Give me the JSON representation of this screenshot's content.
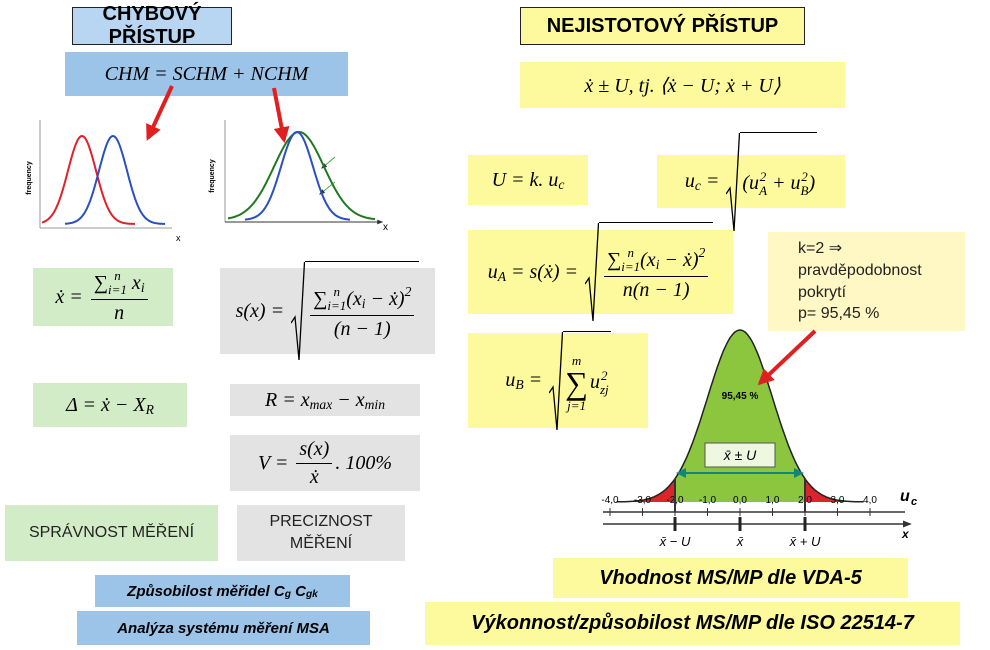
{
  "left": {
    "title": "CHYBOVÝ PŘÍSTUP",
    "equation": [
      "CHM = SCHM + NCHM"
    ],
    "graph1": {
      "y_label": "frequency",
      "x_label": "x"
    },
    "graph2": {
      "y_label": "frequency",
      "x_label": "x"
    },
    "mean": [
      "ẋ = ",
      {
        "frac": [
          [
            "∑",
            {
              "subsup": [
                "i=1",
                "n"
              ]
            },
            " x",
            {
              "sub": "i"
            }
          ],
          [
            "n"
          ]
        ]
      }
    ],
    "std": [
      "s(x) = ",
      {
        "sqrt": [
          {
            "frac": [
              [
                "∑",
                {
                  "subsup": [
                    "i=1",
                    "n"
                  ]
                },
                "(x",
                {
                  "sub": "i"
                },
                " − ẋ)",
                {
                  "sup": "2"
                }
              ],
              [
                "(n − 1)"
              ]
            ]
          }
        ]
      }
    ],
    "delta": [
      "Δ = ẋ − X",
      {
        "sub": "R"
      }
    ],
    "range": [
      "R = x",
      {
        "sub": "max"
      },
      " − x",
      {
        "sub": "min"
      }
    ],
    "variation": [
      "V = ",
      {
        "frac": [
          [
            "s(x)"
          ],
          [
            "ẋ"
          ]
        ]
      },
      ". 100%"
    ],
    "accuracy": "SPRÁVNOST MĚŘENÍ",
    "precision": "PRECIZNOST MĚŘENÍ",
    "capability": [
      "Způsobilost měřidel ",
      "C",
      {
        "sub": "g"
      },
      " C",
      {
        "sub": "gk"
      }
    ],
    "msa": "Analýza systému měření MSA"
  },
  "right": {
    "title": "NEJISTOTOVÝ PŘÍSTUP",
    "equation": [
      "ẋ ± U, tj. ⟨ẋ − U; ẋ + U⟩"
    ],
    "expanded": [
      "U = k. u",
      {
        "sub": "c"
      }
    ],
    "combined": [
      "u",
      {
        "sub": "c"
      },
      " = ",
      {
        "sqrt": [
          "(u",
          {
            "subsup": [
              "A",
              "2"
            ]
          },
          " + u",
          {
            "subsup": [
              "B",
              "2"
            ]
          },
          ")"
        ]
      }
    ],
    "type_a": [
      "u",
      {
        "sub": "A"
      },
      " = s(ẋ) = ",
      {
        "sqrt": [
          {
            "frac": [
              [
                "∑",
                {
                  "subsup": [
                    "i=1",
                    "n"
                  ]
                },
                "(x",
                {
                  "sub": "i"
                },
                " − ẋ)",
                {
                  "sup": "2"
                }
              ],
              [
                "n(n − 1)"
              ]
            ]
          }
        ]
      }
    ],
    "type_b": [
      "u",
      {
        "sub": "B"
      },
      " = ",
      {
        "sqrt": [
          {
            "op": "∑",
            "lo": "j=1",
            "hi": "m"
          },
          "u",
          {
            "subsup": [
              "zj",
              "2"
            ]
          }
        ]
      }
    ],
    "coverage_note": [
      "k=2 ⇒",
      "pravděpodobnost",
      "pokrytí",
      "p= 95,45 %"
    ],
    "distribution": {
      "area_label": "95,45 %",
      "interval_label": "x̄ ± U",
      "axis_label": "u",
      "axis_label_sub": "c",
      "x_label": "x",
      "ticks": [
        {
          "value": -4,
          "label": "-4,0"
        },
        {
          "value": -3,
          "label": "-3,0"
        },
        {
          "value": -2,
          "label": "-2,0"
        },
        {
          "value": -1,
          "label": "-1,0"
        },
        {
          "value": 0,
          "label": "0,0"
        },
        {
          "value": 1,
          "label": "1,0"
        },
        {
          "value": 2,
          "label": "2,0"
        },
        {
          "value": 3,
          "label": "3,0"
        },
        {
          "value": 4,
          "label": "4,0"
        }
      ],
      "markers": [
        {
          "value": -2,
          "label": "x̄ − U"
        },
        {
          "value": 0,
          "label": "x̄"
        },
        {
          "value": 2,
          "label": "x̄ + U"
        }
      ]
    },
    "vda": "Vhodnost MS/MP dle VDA-5",
    "iso": "Výkonnost/způsobilost MS/MP dle ISO 22514-7"
  }
}
